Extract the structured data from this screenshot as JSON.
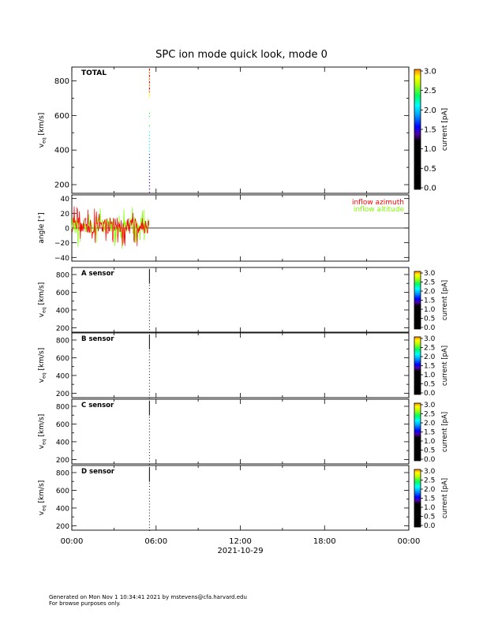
{
  "title": "SPC ion mode quick look, mode 0",
  "footer": {
    "line1": "Generated on Mon Nov  1 10:34:41 2021 by mstevens@cfa.harvard.edu",
    "line2": "For browse purposes only."
  },
  "colorbar": {
    "label": "current [pA]",
    "range": [
      0.0,
      3.0
    ],
    "big_ticks": [
      "0.0",
      "0.5",
      "1.0",
      "1.5",
      "2.0",
      "2.5",
      "3.0"
    ],
    "small_ticks": [
      "0.0",
      "0.5",
      "1.0",
      "1.5",
      "2.0",
      "2.5",
      "3.0"
    ]
  },
  "chart_data": [
    {
      "type": "heatmap",
      "panel": "total",
      "label": "TOTAL",
      "ylabel": "v_eq [km/s]",
      "ylim": [
        150,
        880
      ],
      "yticks": [
        "200",
        "400",
        "600",
        "800"
      ],
      "x": [
        "00:00",
        "06:00",
        "12:00",
        "18:00",
        "00:00"
      ],
      "xlabel": "2021-10-29",
      "data_time": "05:30",
      "colors": [
        "#000000",
        "#5a00b0",
        "#0040ff",
        "#00ffff",
        "#00ff40",
        "#ffff00",
        "#ff8000",
        "#ff0000"
      ]
    },
    {
      "type": "line",
      "panel": "angle",
      "ylabel": "angle [°]",
      "ylim": [
        -45,
        45
      ],
      "yticks": [
        "−40",
        "−20",
        "0",
        "20",
        "40"
      ],
      "series": [
        {
          "name": "inflow azimuth",
          "color": "#ff0000"
        },
        {
          "name": "inflow altitude",
          "color": "#80ff00"
        }
      ],
      "x_range": [
        "00:00",
        "05:30"
      ],
      "value_range": [
        -28,
        30
      ]
    },
    {
      "type": "heatmap",
      "panel": "sensor",
      "label": "A sensor",
      "ylabel": "v_eq [km/s]",
      "ylim": [
        150,
        880
      ],
      "yticks": [
        "200",
        "400",
        "600",
        "800"
      ],
      "data_time": "05:30"
    },
    {
      "type": "heatmap",
      "panel": "sensor",
      "label": "B sensor",
      "ylabel": "v_eq [km/s]",
      "ylim": [
        150,
        880
      ],
      "yticks": [
        "200",
        "400",
        "600",
        "800"
      ],
      "data_time": "05:30"
    },
    {
      "type": "heatmap",
      "panel": "sensor",
      "label": "C sensor",
      "ylabel": "v_eq [km/s]",
      "ylim": [
        150,
        880
      ],
      "yticks": [
        "200",
        "400",
        "600",
        "800"
      ],
      "data_time": "05:30"
    },
    {
      "type": "heatmap",
      "panel": "sensor",
      "label": "D sensor",
      "ylabel": "v_eq [km/s]",
      "ylim": [
        150,
        880
      ],
      "yticks": [
        "200",
        "400",
        "600",
        "800"
      ],
      "data_time": "05:30"
    }
  ]
}
